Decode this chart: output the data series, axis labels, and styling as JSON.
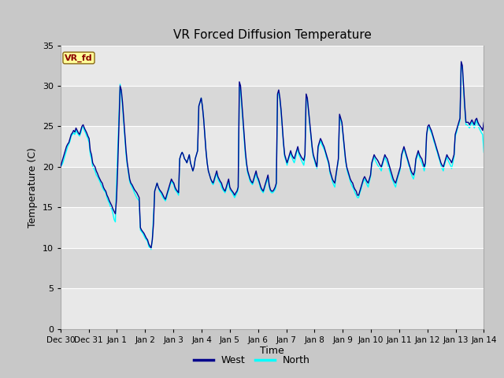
{
  "title": "VR Forced Diffusion Temperature",
  "xlabel": "Time",
  "ylabel": "Temperature (C)",
  "ylim": [
    0,
    35
  ],
  "yticks": [
    0,
    5,
    10,
    15,
    20,
    25,
    30,
    35
  ],
  "fig_bg_color": "#c8c8c8",
  "plot_bg_color": "#ffffff",
  "band_colors": [
    "#e8e8e8",
    "#d8d8d8"
  ],
  "west_color": "#00008B",
  "north_color": "#00FFFF",
  "legend_label_west": "West",
  "legend_label_north": "North",
  "vr_fd_box_color": "#FFFF99",
  "vr_fd_text_color": "#8B0000",
  "start_date": "2023-12-30",
  "west_data": [
    20.0,
    20.5,
    21.0,
    21.5,
    22.0,
    22.5,
    22.8,
    23.0,
    23.5,
    24.0,
    24.2,
    24.5,
    24.3,
    24.8,
    24.5,
    24.2,
    24.0,
    24.5,
    25.0,
    25.2,
    24.8,
    24.5,
    24.2,
    23.8,
    23.5,
    22.0,
    21.5,
    20.5,
    20.2,
    20.0,
    19.5,
    19.2,
    18.8,
    18.5,
    18.2,
    18.0,
    17.5,
    17.2,
    17.0,
    16.5,
    16.2,
    15.8,
    15.5,
    15.2,
    14.8,
    14.5,
    14.2,
    16.0,
    20.0,
    25.0,
    30.0,
    29.5,
    28.0,
    26.0,
    24.0,
    22.0,
    20.5,
    19.5,
    18.5,
    18.0,
    17.8,
    17.5,
    17.2,
    17.0,
    16.8,
    16.5,
    16.2,
    12.5,
    12.2,
    12.0,
    11.8,
    11.5,
    11.2,
    11.0,
    10.5,
    10.2,
    10.0,
    11.0,
    13.0,
    17.0,
    17.5,
    18.0,
    17.5,
    17.2,
    17.0,
    16.8,
    16.5,
    16.2,
    16.0,
    16.5,
    17.0,
    17.5,
    18.0,
    18.5,
    18.2,
    18.0,
    17.5,
    17.2,
    17.0,
    16.8,
    21.0,
    21.5,
    21.8,
    21.5,
    21.0,
    20.8,
    20.5,
    21.0,
    21.5,
    20.5,
    20.0,
    19.5,
    20.0,
    21.0,
    21.5,
    22.0,
    27.5,
    28.0,
    28.5,
    27.5,
    26.0,
    24.0,
    22.0,
    20.5,
    19.5,
    19.0,
    18.5,
    18.2,
    18.0,
    18.5,
    19.0,
    19.5,
    18.8,
    18.5,
    18.2,
    18.0,
    17.5,
    17.2,
    17.0,
    17.5,
    18.0,
    18.5,
    17.5,
    17.2,
    17.0,
    16.8,
    16.5,
    16.8,
    17.0,
    17.5,
    30.5,
    30.0,
    28.0,
    26.0,
    24.0,
    22.0,
    20.5,
    19.5,
    19.0,
    18.5,
    18.2,
    18.0,
    18.5,
    19.0,
    19.5,
    18.8,
    18.5,
    18.0,
    17.5,
    17.2,
    17.0,
    17.5,
    18.0,
    18.5,
    19.0,
    17.8,
    17.2,
    17.0,
    17.0,
    17.2,
    17.5,
    18.0,
    29.0,
    29.5,
    28.5,
    27.0,
    25.0,
    23.0,
    21.5,
    21.0,
    20.5,
    21.0,
    21.5,
    22.0,
    21.5,
    21.2,
    21.0,
    21.5,
    22.0,
    22.5,
    21.8,
    21.5,
    21.2,
    21.0,
    20.8,
    21.5,
    29.0,
    28.5,
    27.0,
    25.5,
    24.0,
    22.5,
    21.5,
    21.0,
    20.5,
    20.0,
    22.5,
    23.0,
    23.5,
    23.2,
    22.8,
    22.5,
    22.0,
    21.5,
    21.0,
    20.5,
    19.5,
    19.0,
    18.5,
    18.2,
    18.0,
    19.0,
    20.0,
    21.0,
    26.5,
    26.0,
    25.5,
    24.0,
    22.5,
    21.0,
    20.0,
    19.5,
    19.0,
    18.5,
    18.2,
    18.0,
    17.5,
    17.2,
    17.0,
    16.5,
    16.5,
    17.0,
    17.5,
    18.0,
    18.5,
    18.8,
    18.5,
    18.2,
    18.0,
    18.5,
    19.0,
    20.5,
    21.0,
    21.5,
    21.2,
    21.0,
    20.8,
    20.5,
    20.2,
    20.0,
    20.5,
    21.0,
    21.5,
    21.2,
    21.0,
    20.5,
    20.0,
    19.5,
    19.0,
    18.5,
    18.2,
    18.0,
    18.5,
    19.0,
    19.5,
    20.0,
    21.5,
    22.0,
    22.5,
    22.0,
    21.5,
    21.0,
    20.5,
    20.0,
    19.5,
    19.2,
    19.0,
    19.5,
    21.0,
    21.5,
    22.0,
    21.5,
    21.2,
    21.0,
    20.5,
    20.0,
    20.5,
    24.0,
    25.0,
    25.2,
    24.8,
    24.5,
    24.0,
    23.5,
    23.0,
    22.5,
    22.0,
    21.5,
    21.0,
    20.5,
    20.2,
    20.0,
    20.5,
    21.0,
    21.5,
    21.2,
    21.0,
    20.8,
    20.5,
    21.0,
    21.5,
    24.0,
    24.5,
    25.0,
    25.5,
    26.0,
    33.0,
    32.5,
    30.0,
    27.5,
    25.5,
    25.5,
    25.5,
    25.2,
    25.5,
    25.8,
    25.5,
    25.2,
    25.8,
    26.0,
    25.5,
    25.2,
    25.0,
    24.8,
    24.5,
    25.5
  ],
  "north_data": [
    20.0,
    20.2,
    20.5,
    21.0,
    21.5,
    22.0,
    22.5,
    22.8,
    23.2,
    23.8,
    24.0,
    24.2,
    24.0,
    24.5,
    24.2,
    24.0,
    23.8,
    24.2,
    24.8,
    25.0,
    24.5,
    24.2,
    23.8,
    23.5,
    23.0,
    21.5,
    21.0,
    20.0,
    19.8,
    19.5,
    19.0,
    18.8,
    18.5,
    18.2,
    17.8,
    17.5,
    17.2,
    17.0,
    16.8,
    16.2,
    15.8,
    15.5,
    15.0,
    14.8,
    14.2,
    13.5,
    13.2,
    18.0,
    22.0,
    26.0,
    30.2,
    29.0,
    27.5,
    25.5,
    23.5,
    21.5,
    20.2,
    19.2,
    18.2,
    17.8,
    17.5,
    17.2,
    16.8,
    16.5,
    16.2,
    16.0,
    15.8,
    12.2,
    12.0,
    11.8,
    11.5,
    11.2,
    11.0,
    10.8,
    10.2,
    10.0,
    9.8,
    11.0,
    14.0,
    17.0,
    17.5,
    18.0,
    17.5,
    17.0,
    16.8,
    16.5,
    16.2,
    16.0,
    15.8,
    16.2,
    16.8,
    17.2,
    17.8,
    18.2,
    18.0,
    17.8,
    17.2,
    17.0,
    16.8,
    16.5,
    21.0,
    21.5,
    21.8,
    21.5,
    21.0,
    20.8,
    20.5,
    21.0,
    21.5,
    20.5,
    20.0,
    19.5,
    20.0,
    21.0,
    21.5,
    22.0,
    27.5,
    28.0,
    28.5,
    27.5,
    26.0,
    24.0,
    22.0,
    20.5,
    19.5,
    19.0,
    18.5,
    18.0,
    17.8,
    18.2,
    18.8,
    19.2,
    18.5,
    18.2,
    18.0,
    17.5,
    17.2,
    17.0,
    16.8,
    17.2,
    17.8,
    18.2,
    17.2,
    17.0,
    16.8,
    16.5,
    16.2,
    16.5,
    16.8,
    17.2,
    30.0,
    29.5,
    27.5,
    25.5,
    23.5,
    21.5,
    20.2,
    19.2,
    18.8,
    18.2,
    18.0,
    17.8,
    18.2,
    18.8,
    19.2,
    18.5,
    18.2,
    17.8,
    17.2,
    17.0,
    16.8,
    17.2,
    17.8,
    18.2,
    18.8,
    17.5,
    17.0,
    16.8,
    16.8,
    17.0,
    17.2,
    17.8,
    28.8,
    29.2,
    28.2,
    26.8,
    24.8,
    22.8,
    21.2,
    20.8,
    20.2,
    20.8,
    21.2,
    21.8,
    21.2,
    20.8,
    20.5,
    21.0,
    21.8,
    22.2,
    21.5,
    21.2,
    20.8,
    20.5,
    20.2,
    21.2,
    28.8,
    28.2,
    26.8,
    25.2,
    23.8,
    22.2,
    21.2,
    20.8,
    20.2,
    19.8,
    22.2,
    22.8,
    23.2,
    22.8,
    22.5,
    22.2,
    21.8,
    21.2,
    20.8,
    20.2,
    19.2,
    18.8,
    18.2,
    17.8,
    17.5,
    18.8,
    19.8,
    20.8,
    26.2,
    25.8,
    25.2,
    23.8,
    22.2,
    20.8,
    19.8,
    19.2,
    18.8,
    18.2,
    17.8,
    17.5,
    17.2,
    16.8,
    16.5,
    16.2,
    16.2,
    16.8,
    17.2,
    17.8,
    18.2,
    18.5,
    18.2,
    17.8,
    17.5,
    18.2,
    18.8,
    20.2,
    20.8,
    21.2,
    20.8,
    20.5,
    20.2,
    20.0,
    19.8,
    19.5,
    20.2,
    20.8,
    21.2,
    20.8,
    20.5,
    20.0,
    19.5,
    19.0,
    18.5,
    18.2,
    17.8,
    17.5,
    18.2,
    18.8,
    19.2,
    19.8,
    21.2,
    21.8,
    22.2,
    21.8,
    21.2,
    20.8,
    20.2,
    19.8,
    19.2,
    18.8,
    18.5,
    19.2,
    20.8,
    21.2,
    21.8,
    21.2,
    20.8,
    20.5,
    20.0,
    19.5,
    20.2,
    23.8,
    24.8,
    25.0,
    24.5,
    24.2,
    23.8,
    23.2,
    22.8,
    22.2,
    21.8,
    21.2,
    20.8,
    20.2,
    19.8,
    19.5,
    20.2,
    20.8,
    21.2,
    20.8,
    20.5,
    20.2,
    19.8,
    20.5,
    21.2,
    23.8,
    24.2,
    24.8,
    25.2,
    25.8,
    32.8,
    32.0,
    29.5,
    27.2,
    25.2,
    25.2,
    25.0,
    24.8,
    25.2,
    25.5,
    25.2,
    24.8,
    25.2,
    25.8,
    25.2,
    24.8,
    24.5,
    24.2,
    24.0,
    21.8
  ]
}
